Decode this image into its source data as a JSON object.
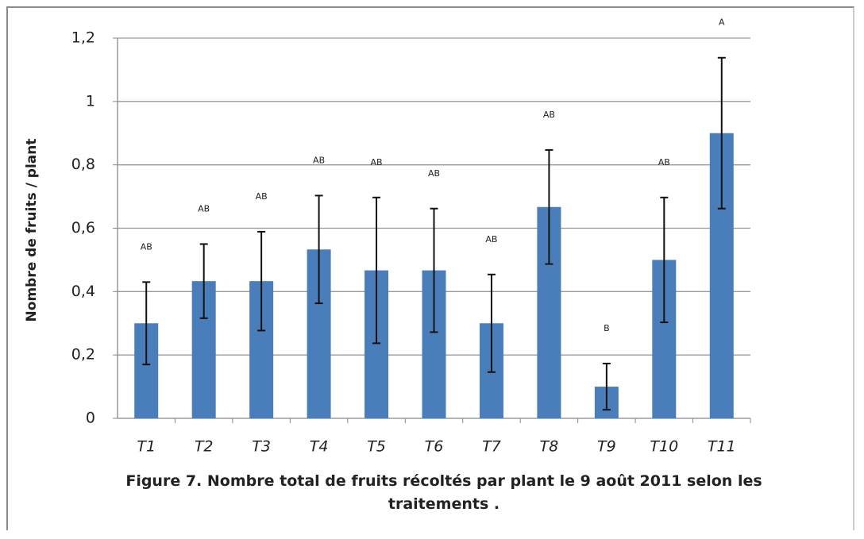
{
  "chart_data": {
    "type": "bar",
    "title": "Figure 7.  Nombre total de fruits récoltés par plant le 9 août 2011 selon les traitements .",
    "ylabel": "Nombre de fruits / plant",
    "categories": [
      "T1",
      "T2",
      "T3",
      "T4",
      "T5",
      "T6",
      "T7",
      "T8",
      "T9",
      "T10",
      "T11"
    ],
    "values": [
      0.3,
      0.433,
      0.433,
      0.533,
      0.467,
      0.467,
      0.3,
      0.667,
      0.1,
      0.5,
      0.9
    ],
    "errors": [
      0.13,
      0.117,
      0.156,
      0.17,
      0.23,
      0.195,
      0.154,
      0.18,
      0.073,
      0.197,
      0.238
    ],
    "annotations": [
      "AB",
      "AB",
      "AB",
      "AB",
      "AB",
      "AB",
      "AB",
      "AB",
      "B",
      "AB",
      "A"
    ],
    "color": "#4a7ebb",
    "ylim": [
      0,
      1.2
    ],
    "yticks": [
      0,
      {
        "value": 0.2,
        "label": "0,2"
      },
      {
        "value": 0.4,
        "label": "0,4"
      },
      {
        "value": 0.6,
        "label": "0,6"
      },
      {
        "value": 0.8,
        "label": "0,8"
      },
      1,
      {
        "value": 1.2,
        "label": "1,2"
      }
    ],
    "grid": true
  }
}
